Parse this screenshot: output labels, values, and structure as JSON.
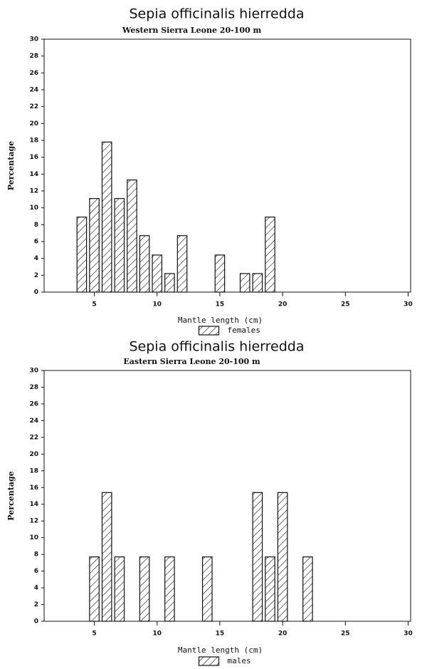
{
  "chart_data": [
    {
      "type": "bar",
      "title": "Sepia officinalis hierredda",
      "subtitle": "Western Sierra Leone 20-100 m",
      "xlabel": "Mantle length (cm)",
      "ylabel": "Percentage",
      "x": [
        4,
        5,
        6,
        7,
        8,
        9,
        10,
        11,
        12,
        15,
        17,
        18,
        19
      ],
      "series": [
        {
          "name": "females",
          "color": "#111111",
          "values": [
            8.9,
            11.1,
            17.8,
            11.1,
            13.3,
            6.7,
            4.4,
            2.2,
            6.7,
            4.4,
            2.2,
            2.2,
            8.9
          ]
        }
      ],
      "xlim": [
        1,
        30.2
      ],
      "xticks": [
        5,
        10,
        15,
        20,
        25,
        30
      ],
      "ylim": [
        0,
        30
      ],
      "yticks": [
        0,
        2,
        4,
        6,
        8,
        10,
        12,
        14,
        16,
        18,
        20,
        22,
        24,
        26,
        28,
        30
      ]
    },
    {
      "type": "bar",
      "title": "Sepia officinalis hierredda",
      "subtitle": "Eastern Sierra Leone 20-100 m",
      "xlabel": "Mantle length (cm)",
      "ylabel": "Percentage",
      "x": [
        5,
        6,
        7,
        9,
        11,
        14,
        18,
        19,
        20,
        22
      ],
      "series": [
        {
          "name": "males",
          "color": "#111111",
          "values": [
            7.7,
            15.4,
            7.7,
            7.7,
            7.7,
            7.7,
            15.4,
            7.7,
            15.4,
            7.7
          ]
        }
      ],
      "xlim": [
        1,
        30.2
      ],
      "xticks": [
        5,
        10,
        15,
        20,
        25,
        30
      ],
      "ylim": [
        0,
        30
      ],
      "yticks": [
        0,
        2,
        4,
        6,
        8,
        10,
        12,
        14,
        16,
        18,
        20,
        22,
        24,
        26,
        28,
        30
      ]
    }
  ]
}
